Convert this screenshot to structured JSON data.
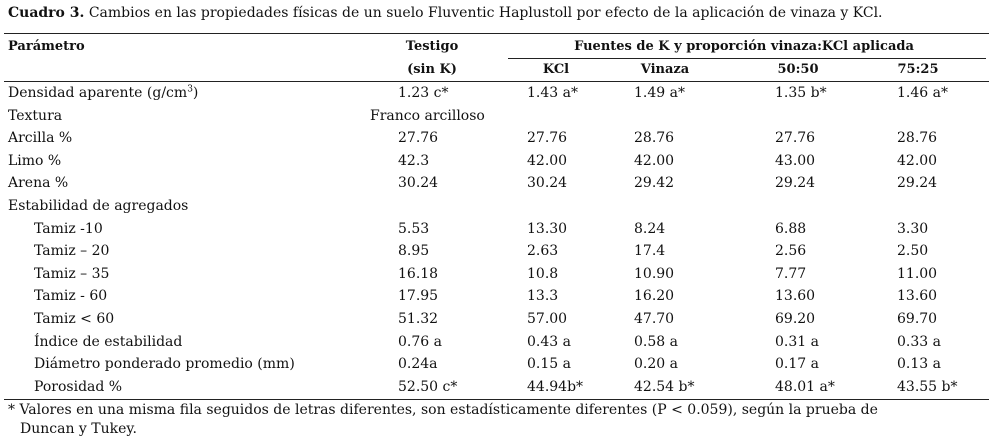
{
  "title": {
    "label": "Cuadro 3.",
    "text": "Cambios en las propiedades físicas de un suelo Fluventic Haplustoll por efecto de la aplicación de vinaza y KCl."
  },
  "header": {
    "parameter": "Parámetro",
    "control": "Testigo",
    "control_sub": "(sin K)",
    "group": "Fuentes de K y proporción vinaza:KCl aplicada",
    "columns": [
      "KCl",
      "Vinaza",
      "50:50",
      "75:25"
    ]
  },
  "rows": [
    {
      "parameter": "Densidad aparente (g/cm",
      "sup": "3",
      "suffix": ")",
      "values": [
        "1.23 c*",
        "1.43 a*",
        "1.49 a*",
        "1.35 b*",
        "1.46 a*"
      ]
    },
    {
      "parameter": "Textura",
      "values": [
        "Franco arcilloso"
      ]
    },
    {
      "parameter": "Arcilla %",
      "values": [
        "27.76",
        "27.76",
        "28.76",
        "27.76",
        "28.76"
      ]
    },
    {
      "parameter": "Limo %",
      "values": [
        "42.3",
        "42.00",
        "42.00",
        "43.00",
        "42.00"
      ]
    },
    {
      "parameter": "Arena %",
      "values": [
        "30.24",
        "30.24",
        "29.42",
        "29.24",
        "29.24"
      ]
    },
    {
      "parameter": "Estabilidad de agregados",
      "values": []
    },
    {
      "parameter": "Tamiz -10",
      "values": [
        "5.53",
        "13.30",
        "8.24",
        "6.88",
        "3.30"
      ]
    },
    {
      "parameter": "Tamiz – 20",
      "values": [
        "8.95",
        "2.63",
        "17.4",
        "2.56",
        "2.50"
      ]
    },
    {
      "parameter": "Tamiz – 35",
      "values": [
        "16.18",
        "10.8",
        "10.90",
        "7.77",
        "11.00"
      ]
    },
    {
      "parameter": "Tamiz - 60",
      "values": [
        "17.95",
        "13.3",
        "16.20",
        "13.60",
        "13.60"
      ]
    },
    {
      "parameter": "Tamiz < 60",
      "values": [
        "51.32",
        "57.00",
        "47.70",
        "69.20",
        "69.70"
      ]
    },
    {
      "parameter": "Índice de estabilidad",
      "values": [
        "0.76 a",
        "0.43 a",
        "0.58 a",
        "0.31 a",
        "0.33 a"
      ]
    },
    {
      "parameter": "Diámetro ponderado promedio (mm)",
      "values": [
        "0.24a",
        "0.15 a",
        "0.20 a",
        "0.17 a",
        "0.13 a"
      ]
    },
    {
      "parameter": "Porosidad %",
      "values": [
        "52.50 c*",
        "44.94b*",
        "42.54 b*",
        "48.01 a*",
        "43.55 b*"
      ]
    }
  ],
  "footnote": [
    "* Valores en una misma fila seguidos de letras diferentes, son estadísticamente diferentes (P < 0.059), según la prueba de",
    "Duncan y Tukey."
  ]
}
